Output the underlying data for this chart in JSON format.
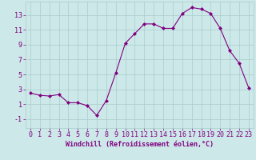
{
  "x": [
    0,
    1,
    2,
    3,
    4,
    5,
    6,
    7,
    8,
    9,
    10,
    11,
    12,
    13,
    14,
    15,
    16,
    17,
    18,
    19,
    20,
    21,
    22,
    23
  ],
  "y": [
    2.5,
    2.2,
    2.1,
    2.3,
    1.2,
    1.2,
    0.8,
    -0.5,
    1.5,
    5.2,
    9.2,
    10.5,
    11.8,
    11.8,
    11.2,
    11.2,
    13.2,
    14.0,
    13.8,
    13.2,
    11.2,
    8.2,
    6.5,
    3.2
  ],
  "line_color": "#800080",
  "marker": "D",
  "marker_size": 2,
  "bg_color": "#cce8e8",
  "grid_color": "#aacccc",
  "xlabel": "Windchill (Refroidissement éolien,°C)",
  "xlabel_fontsize": 6,
  "tick_fontsize": 6,
  "ylabel_ticks": [
    -1,
    1,
    3,
    5,
    7,
    9,
    11,
    13
  ],
  "xlim": [
    -0.5,
    23.5
  ],
  "ylim": [
    -2.2,
    14.8
  ]
}
